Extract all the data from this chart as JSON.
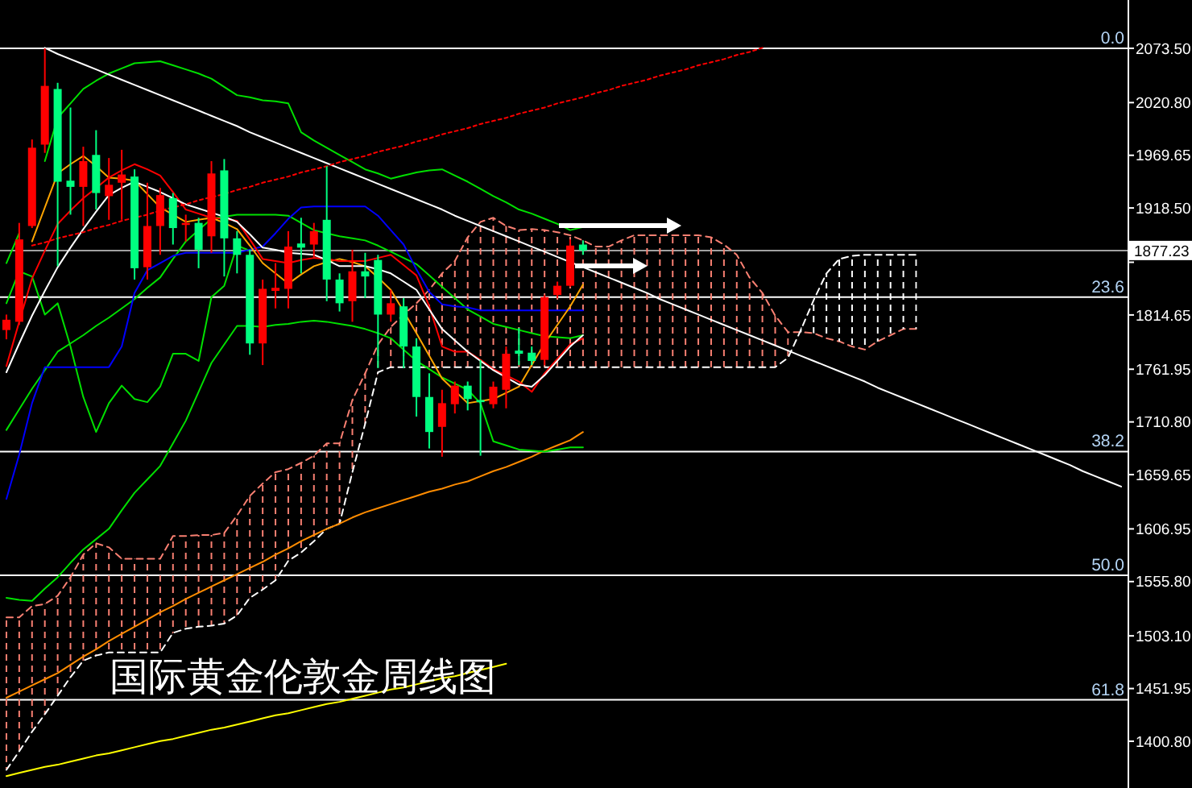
{
  "chart_data": {
    "type": "candlestick",
    "title": "国际黄金伦敦金周线图",
    "categories": [
      null,
      null,
      null,
      null,
      null,
      null,
      null,
      null,
      null,
      null,
      null,
      null,
      null,
      null,
      null,
      null,
      null,
      null,
      null,
      null,
      null,
      null,
      null,
      null,
      null,
      null,
      null,
      null,
      null,
      null,
      null,
      null,
      null,
      null,
      null,
      null,
      null,
      null,
      null,
      null,
      null,
      null,
      null,
      null,
      null,
      null,
      null,
      null,
      null,
      null,
      null,
      null,
      null,
      null,
      null,
      null,
      null,
      null,
      null,
      null,
      null,
      null,
      null,
      null,
      null,
      null,
      null,
      null,
      null,
      null,
      null,
      null,
      null,
      null,
      null,
      null,
      null,
      null,
      null,
      null,
      null,
      null,
      null,
      null,
      null,
      null,
      null,
      null
    ],
    "ohlc": [
      [
        1800,
        1815,
        1791,
        1810
      ],
      [
        1808,
        1904,
        1805,
        1888
      ],
      [
        1901,
        1985,
        1899,
        1977
      ],
      [
        1980,
        2073.5,
        1972,
        2037
      ],
      [
        2034,
        2040,
        1862,
        1944
      ],
      [
        1945,
        2016,
        1912,
        1939
      ],
      [
        1939,
        1978,
        1901,
        1964
      ],
      [
        1970,
        1994,
        1917,
        1933
      ],
      [
        1930,
        1967,
        1907,
        1941
      ],
      [
        1943,
        1975,
        1907,
        1951
      ],
      [
        1949,
        1956,
        1849,
        1860
      ],
      [
        1861,
        1943,
        1849,
        1901
      ],
      [
        1901,
        1938,
        1873,
        1931
      ],
      [
        1928,
        1933,
        1883,
        1899
      ],
      [
        1902,
        1912,
        1886,
        1904
      ],
      [
        1904,
        1909,
        1860,
        1878
      ],
      [
        1891,
        1964,
        1875,
        1952
      ],
      [
        1955,
        1966,
        1852,
        1889
      ],
      [
        1889,
        1896,
        1855,
        1873
      ],
      [
        1873,
        1878,
        1776,
        1787
      ],
      [
        1787,
        1849,
        1766,
        1840
      ],
      [
        1838,
        1865,
        1821,
        1841
      ],
      [
        1840,
        1896,
        1821,
        1881
      ],
      [
        1884,
        1909,
        1855,
        1880
      ],
      [
        1883,
        1904,
        1870,
        1896
      ],
      [
        1907,
        1959,
        1828,
        1849
      ],
      [
        1849,
        1855,
        1818,
        1826
      ],
      [
        1828,
        1878,
        1808,
        1857
      ],
      [
        1857,
        1875,
        1831,
        1852
      ],
      [
        1868,
        1873,
        1763,
        1815
      ],
      [
        1815,
        1839,
        1808,
        1826
      ],
      [
        1823,
        1831,
        1763,
        1784
      ],
      [
        1784,
        1792,
        1716,
        1735
      ],
      [
        1735,
        1758,
        1685,
        1701
      ],
      [
        1706,
        1742,
        1677,
        1729
      ],
      [
        1728,
        1750,
        1719,
        1746
      ],
      [
        1746,
        1750,
        1722,
        1733
      ],
      [
        1732,
        1771,
        1678,
        1730
      ],
      [
        1728,
        1750,
        1724,
        1745
      ],
      [
        1742,
        1784,
        1724,
        1777
      ],
      [
        1780,
        1802,
        1766,
        1777
      ],
      [
        1778,
        1784,
        1766,
        1770
      ],
      [
        1771,
        1834,
        1766,
        1832
      ],
      [
        1834,
        1847,
        1831,
        1843
      ],
      [
        1843,
        1888,
        1842,
        1882
      ],
      [
        1883,
        1887,
        1873,
        1877.23
      ],
      null,
      null,
      null,
      null,
      null,
      null,
      null,
      null,
      null,
      null,
      null,
      null,
      null,
      null,
      null,
      null,
      null,
      null,
      null,
      null,
      null,
      null,
      null,
      null,
      null,
      null,
      null,
      null,
      null,
      null,
      null,
      null,
      null,
      null,
      null,
      null,
      null,
      null,
      null,
      null,
      null,
      null
    ],
    "colors": [
      "#ff0000",
      "#ff0000",
      "#ff0000",
      "#ff0000",
      "#00ff80",
      "#00ff80",
      "#ff0000",
      "#00ff80",
      "#ff0000",
      "#ff0000",
      "#00ff80",
      "#ff0000",
      "#ff0000",
      "#00ff80",
      "#ff0000",
      "#00ff80",
      "#ff0000",
      "#00ff80",
      "#00ff80",
      "#00ff80",
      "#ff0000",
      "#ff0000",
      "#ff0000",
      "#00ff80",
      "#ff0000",
      "#00ff80",
      "#00ff80",
      "#ff0000",
      "#00ff80",
      "#00ff80",
      "#ff0000",
      "#00ff80",
      "#00ff80",
      "#00ff80",
      "#ff0000",
      "#ff0000",
      "#00ff80",
      "#00ff80",
      "#ff0000",
      "#ff0000",
      "#00ff80",
      "#00ff80",
      "#ff0000",
      "#ff0000",
      "#ff0000",
      "#00ff80",
      null,
      null,
      null,
      null,
      null,
      null,
      null,
      null,
      null,
      null,
      null,
      null,
      null,
      null,
      null,
      null,
      null,
      null,
      null,
      null,
      null,
      null,
      null,
      null,
      null,
      null,
      null,
      null,
      null,
      null,
      null,
      null,
      null,
      null,
      null,
      null,
      null,
      null,
      null,
      null,
      null,
      null
    ],
    "series": [
      {
        "type": "line",
        "color": "#fa8072",
        "line_style": "dashed",
        "values": [
          1521,
          1521,
          1532,
          1534,
          1542,
          1560,
          1582,
          1593,
          1589,
          1578,
          1578,
          1578,
          1578,
          1600,
          1600,
          1601,
          1601,
          1603,
          1620,
          1639,
          1651,
          1662,
          1665,
          1671,
          1678,
          1690,
          1690,
          1732,
          1758,
          1786,
          1803,
          1815,
          1826,
          1839,
          1855,
          1867,
          1890,
          1905,
          1909,
          1901,
          1897,
          1898,
          1897,
          1895,
          1892,
          1887,
          1881,
          1881,
          1887,
          1892,
          1892,
          1892,
          1892,
          1892,
          1892,
          1890,
          1883,
          1873,
          1851,
          1836,
          1814,
          1798,
          1798,
          1797,
          1792,
          1789,
          1784,
          1781,
          1789,
          1795,
          1801,
          1801,
          null,
          null,
          null,
          null,
          null,
          null,
          null,
          null,
          null,
          null,
          null,
          null,
          null,
          null,
          null,
          null
        ],
        "upper": [
          1521,
          1521,
          1532,
          1534,
          1542,
          1560,
          1582,
          1593,
          1589,
          1578,
          1578,
          1578,
          1578,
          1600,
          1600,
          1601,
          1601,
          1603,
          1620,
          1639,
          1651,
          1662,
          1665,
          1671,
          1678,
          1690,
          1690,
          1732,
          1758,
          1786,
          1803,
          1815,
          1826,
          1839,
          1855,
          1867,
          1890,
          1905,
          1909,
          1901,
          1897,
          1898,
          1897,
          1895,
          1892,
          1887,
          1881,
          1881,
          1887,
          1892,
          1892,
          1892,
          1892,
          1892,
          1892,
          1890,
          1883,
          1873,
          1851,
          1836,
          1814,
          1798,
          null,
          null,
          null,
          null,
          null,
          null,
          null,
          null,
          null,
          null,
          null,
          null,
          null,
          null,
          null,
          null,
          null,
          null,
          null,
          null,
          null,
          null,
          null,
          null,
          null,
          null
        ],
        "lower": [
          1373,
          1391,
          1410,
          1427,
          1445,
          1463,
          1479,
          1484,
          1487,
          1487,
          1487,
          1487,
          1487,
          1506,
          1510,
          1512,
          1513,
          1515,
          1523,
          1540,
          1548,
          1557,
          1576,
          1584,
          1595,
          1607,
          1612,
          1662,
          1709,
          1759,
          1764,
          1764,
          1764,
          1764,
          1764,
          1764,
          1764,
          1764,
          1764,
          1764,
          1764,
          1764,
          1764,
          1764,
          1764,
          1764,
          1764,
          1764,
          1764,
          1764,
          1764,
          1764,
          1764,
          1764,
          1764,
          1764,
          1764,
          1764,
          1764,
          1764,
          1764,
          1773,
          null,
          null,
          null,
          null,
          null,
          null,
          null,
          null,
          null,
          null,
          null,
          null,
          null,
          null,
          null,
          null,
          null,
          null,
          null,
          null,
          null,
          null,
          null,
          null,
          null,
          null
        ]
      },
      {
        "type": "line",
        "color": "#ffffff",
        "line_style": "dashed",
        "values": [
          1373,
          1391,
          1410,
          1427,
          1445,
          1463,
          1479,
          1484,
          1487,
          1487,
          1487,
          1487,
          1487,
          1506,
          1510,
          1512,
          1513,
          1515,
          1523,
          1540,
          1548,
          1557,
          1576,
          1584,
          1595,
          1607,
          1612,
          1662,
          1709,
          1759,
          1764,
          1764,
          1764,
          1764,
          1764,
          1764,
          1764,
          1764,
          1764,
          1764,
          1764,
          1764,
          1764,
          1764,
          1764,
          1764,
          1764,
          1764,
          1764,
          1764,
          1764,
          1764,
          1764,
          1764,
          1764,
          1764,
          1764,
          1764,
          1764,
          1764,
          1764,
          1773,
          1800,
          1829,
          1855,
          1869,
          1872,
          1873,
          1873,
          1873,
          1873,
          1873,
          null,
          null,
          null,
          null,
          null,
          null,
          null,
          null,
          null,
          null,
          null,
          null,
          null,
          null,
          null,
          null
        ],
        "upper": [
          null,
          null,
          null,
          null,
          null,
          null,
          null,
          null,
          null,
          null,
          null,
          null,
          null,
          null,
          null,
          null,
          null,
          null,
          null,
          null,
          null,
          null,
          null,
          null,
          null,
          null,
          null,
          null,
          null,
          null,
          null,
          null,
          null,
          null,
          null,
          null,
          null,
          null,
          null,
          null,
          null,
          null,
          null,
          null,
          null,
          null,
          null,
          null,
          null,
          null,
          null,
          null,
          null,
          null,
          null,
          null,
          null,
          null,
          null,
          null,
          null,
          null,
          1800,
          1829,
          1855,
          1869,
          1872,
          1873,
          1873,
          1873,
          1873,
          1873,
          null,
          null,
          null,
          null,
          null,
          null,
          null,
          null,
          null,
          null,
          null,
          null,
          null,
          null,
          null,
          null
        ],
        "lower": [
          null,
          null,
          null,
          null,
          null,
          null,
          null,
          null,
          null,
          null,
          null,
          null,
          null,
          null,
          null,
          null,
          null,
          null,
          null,
          null,
          null,
          null,
          null,
          null,
          null,
          null,
          null,
          null,
          null,
          null,
          null,
          null,
          null,
          null,
          null,
          null,
          null,
          null,
          null,
          null,
          null,
          null,
          null,
          null,
          null,
          null,
          null,
          null,
          null,
          null,
          null,
          null,
          null,
          null,
          null,
          null,
          null,
          null,
          null,
          null,
          null,
          null,
          1798,
          1797,
          1792,
          1789,
          1784,
          1781,
          1789,
          1795,
          1801,
          1801,
          null,
          null,
          null,
          null,
          null,
          null,
          null,
          null,
          null,
          null,
          null,
          null,
          null,
          null,
          null,
          null
        ]
      },
      {
        "type": "line",
        "color": "#ff8c00",
        "values": [
          1443,
          1449,
          1455,
          1461,
          1467,
          1475,
          1483,
          1490,
          1498,
          1505,
          1512,
          1519,
          1526,
          1532,
          1539,
          1545,
          1551,
          1557,
          1563,
          1569,
          1575,
          1582,
          1588,
          1595,
          1601,
          1607,
          1612,
          1618,
          1623,
          1627,
          1631,
          1635,
          1639,
          1643,
          1646,
          1650,
          1653,
          1658,
          1663,
          1667,
          1672,
          1677,
          1683,
          1688,
          1693,
          1701,
          null,
          null,
          null,
          null,
          null,
          null,
          null,
          null,
          null,
          null,
          null,
          null,
          null,
          null,
          null,
          null,
          null,
          null,
          null,
          null,
          null,
          null,
          null,
          null,
          null,
          null,
          null,
          null,
          null,
          null,
          null,
          null,
          null,
          null,
          null,
          null,
          null,
          null,
          null,
          null,
          null,
          null
        ]
      },
      {
        "type": "line",
        "color": "#ffff00",
        "values": [
          1367,
          1370,
          1373,
          1376,
          1378,
          1381,
          1384,
          1387,
          1389,
          1392,
          1395,
          1398,
          1401,
          1403,
          1406,
          1409,
          1412,
          1414,
          1417,
          1420,
          1423,
          1426,
          1428,
          1431,
          1434,
          1437,
          1439,
          1442,
          1445,
          1448,
          1451,
          1453,
          1456,
          1459,
          1462,
          1464,
          1467,
          1470,
          1473,
          1476,
          null,
          null,
          null,
          null,
          null,
          null,
          null,
          null,
          null,
          null,
          null,
          null,
          null,
          null,
          null,
          null,
          null,
          null,
          null,
          null,
          null,
          null,
          null,
          null,
          null,
          null,
          null,
          null,
          null,
          null,
          null,
          null,
          null,
          null,
          null,
          null,
          null,
          null,
          null,
          null,
          null,
          null,
          null,
          null,
          null,
          null,
          null,
          null
        ]
      },
      {
        "type": "line",
        "color": "#00e000",
        "values": [
          1865,
          1894,
          null,
          1964,
          2006,
          2020,
          2034,
          2042,
          2049,
          2054,
          2059,
          2060,
          2061,
          2057,
          2053,
          2049,
          2044,
          2036,
          2028,
          2026,
          2023,
          2022,
          2020,
          1992,
          1984,
          1977,
          1970,
          1963,
          1956,
          1952,
          1947,
          1950,
          1953,
          1955,
          1956,
          1950,
          1944,
          1937,
          1930,
          1924,
          1917,
          1913,
          1908,
          1903,
          1897,
          1900,
          null,
          null,
          null,
          null,
          null,
          null,
          null,
          null,
          null,
          null,
          null,
          null,
          null,
          null,
          null,
          null,
          null,
          null,
          null,
          null,
          null,
          null,
          null,
          null,
          null,
          null,
          null,
          null,
          null,
          null,
          null,
          null,
          null,
          null,
          null,
          null,
          null,
          null,
          null,
          null,
          null,
          null
        ]
      },
      {
        "type": "line",
        "color": "#00e000",
        "values": [
          1703,
          1723,
          1743,
          1761,
          1779,
          1787,
          1795,
          1804,
          1812,
          1821,
          1830,
          1841,
          1851,
          1869,
          1886,
          1897,
          1908,
          1910,
          1912,
          1912,
          1912,
          1912,
          1911,
          1904,
          1897,
          1894,
          1891,
          1889,
          1887,
          1882,
          1876,
          1870,
          1864,
          1853,
          1842,
          1831,
          1820,
          1813,
          1806,
          1803,
          1800,
          1797,
          1794,
          1793,
          1792,
          1795,
          null,
          null,
          null,
          null,
          null,
          null,
          null,
          null,
          null,
          null,
          null,
          null,
          null,
          null,
          null,
          null,
          null,
          null,
          null,
          null,
          null,
          null,
          null,
          null,
          null,
          null,
          null,
          null,
          null,
          null,
          null,
          null,
          null,
          null,
          null,
          null,
          null,
          null,
          null,
          null,
          null,
          null
        ]
      },
      {
        "type": "line",
        "color": "#00e000",
        "values": [
          1540,
          1538,
          1537,
          1549,
          1560,
          1574,
          1587,
          1597,
          1607,
          1625,
          1642,
          1655,
          1668,
          1690,
          1712,
          1740,
          1768,
          1786,
          1804,
          1804,
          1803,
          1805,
          1806,
          1808,
          1809,
          1808,
          1806,
          1804,
          1801,
          1797,
          1792,
          1781,
          1770,
          1762,
          1754,
          1748,
          1742,
          1729,
          1692,
          1688,
          1684,
          1683,
          1682,
          1684,
          1686,
          1686,
          null,
          null,
          null,
          null,
          null,
          null,
          null,
          null,
          null,
          null,
          null,
          null,
          null,
          null,
          null,
          null,
          null,
          null,
          null,
          null,
          null,
          null,
          null,
          null,
          null,
          null,
          null,
          null,
          null,
          null,
          null,
          null,
          null,
          null,
          null,
          null,
          null,
          null,
          null,
          null,
          null,
          null
        ]
      },
      {
        "type": "line",
        "color": "#00e000",
        "values": [
          1826,
          1857,
          1852,
          1815,
          1826,
          1784,
          1735,
          1701,
          1729,
          1746,
          1733,
          1730,
          1745,
          1777,
          1777,
          1770,
          1832,
          1843,
          1882,
          1877,
          null,
          null,
          null,
          null,
          null,
          null,
          null,
          null,
          null,
          null,
          null,
          null,
          null,
          null,
          null,
          null,
          null,
          null,
          null,
          null,
          null,
          null,
          null,
          null,
          null,
          null,
          null,
          null,
          null,
          null,
          null,
          null,
          null,
          null,
          null,
          null,
          null,
          null,
          null,
          null,
          null,
          null,
          null,
          null,
          null,
          null,
          null,
          null,
          null,
          null,
          null,
          null,
          null,
          null,
          null,
          null,
          null,
          null,
          null,
          null,
          null,
          null,
          null,
          null,
          null,
          null,
          null,
          null
        ]
      },
      {
        "type": "line",
        "color": "#0000ff",
        "values": [
          1636,
          1679,
          1729,
          1764,
          1764,
          1764,
          1764,
          1764,
          1764,
          1784,
          1836,
          1858,
          1865,
          1872,
          1875,
          1875,
          1875,
          1875,
          1875,
          1878,
          1881,
          1894,
          1908,
          1919,
          1920,
          1920,
          1920,
          1920,
          1920,
          1911,
          1897,
          1883,
          1859,
          1837,
          1825,
          1823,
          1822,
          1819,
          1819,
          1819,
          1819,
          1819,
          1819,
          1819,
          1819,
          1819,
          null,
          null,
          null,
          null,
          null,
          null,
          null,
          null,
          null,
          null,
          null,
          null,
          null,
          null,
          null,
          null,
          null,
          null,
          null,
          null,
          null,
          null,
          null,
          null,
          null,
          null,
          null,
          null,
          null,
          null,
          null,
          null,
          null,
          null,
          null,
          null,
          null,
          null,
          null,
          null,
          null,
          null
        ]
      },
      {
        "type": "line",
        "color": "#ffa500",
        "values": [
          null,
          null,
          1886,
          1919,
          1952,
          1961,
          1969,
          1959,
          1948,
          1947,
          1945,
          1932,
          1919,
          1912,
          1905,
          1907,
          1909,
          1904,
          1898,
          1882,
          1865,
          1855,
          1845,
          1854,
          1862,
          1866,
          1869,
          1866,
          1862,
          1851,
          1839,
          1818,
          1797,
          1775,
          1753,
          1741,
          1729,
          1731,
          1733,
          1739,
          1745,
          1766,
          1787,
          1805,
          1823,
          1844,
          null,
          null,
          null,
          null,
          null,
          null,
          null,
          null,
          null,
          null,
          null,
          null,
          null,
          null,
          null,
          null,
          null,
          null,
          null,
          null,
          null,
          null,
          null,
          null,
          null,
          null,
          null,
          null,
          null,
          null,
          null,
          null,
          null,
          null,
          null,
          null,
          null,
          null,
          null,
          null,
          null,
          null
        ]
      },
      {
        "type": "line",
        "color": "#ff0000",
        "values": [
          1765,
          1808,
          1850,
          1877,
          1903,
          1916,
          1928,
          1938,
          1948,
          1955,
          1961,
          1956,
          1950,
          1934,
          1917,
          1913,
          1909,
          1908,
          1906,
          1888,
          1869,
          1867,
          1865,
          1868,
          1870,
          1869,
          1867,
          1867,
          1867,
          1870,
          1873,
          1863,
          1853,
          1823,
          1784,
          1779,
          1779,
          1771,
          1762,
          1756,
          1750,
          1740,
          1758,
          1772,
          1786,
          1792,
          null,
          null,
          null,
          null,
          null,
          null,
          null,
          null,
          null,
          null,
          null,
          null,
          null,
          null,
          null,
          null,
          null,
          null,
          null,
          null,
          null,
          null,
          null,
          null,
          null,
          null,
          null,
          null,
          null,
          null,
          null,
          null,
          null,
          null,
          null,
          null,
          null,
          null,
          null,
          null,
          null,
          null
        ]
      },
      {
        "type": "line",
        "color": "#ffffff",
        "values": [
          1759,
          1787,
          1814,
          1838,
          1861,
          1880,
          1898,
          1915,
          1931,
          1938,
          1944,
          1939,
          1934,
          1928,
          1922,
          1918,
          1914,
          1910,
          1905,
          1893,
          1880,
          1878,
          1875,
          1874,
          1873,
          1868,
          1862,
          1862,
          1862,
          1859,
          1855,
          1847,
          1839,
          1820,
          1801,
          1790,
          1779,
          1770,
          1761,
          1754,
          1747,
          1745,
          1756,
          1770,
          1784,
          1795,
          null,
          null,
          null,
          null,
          null,
          null,
          null,
          null,
          null,
          null,
          null,
          null,
          null,
          null,
          null,
          null,
          null,
          null,
          null,
          null,
          null,
          null,
          null,
          null,
          null,
          null,
          null,
          null,
          null,
          null,
          null,
          null,
          null,
          null,
          null,
          null,
          null,
          null,
          null,
          null,
          null,
          null
        ]
      },
      {
        "type": "line",
        "color": "#ffffff",
        "values": [
          null,
          null,
          null,
          2074,
          2068,
          2063,
          2058,
          2053,
          2048,
          2043,
          2038,
          2033,
          2028,
          2023,
          2018,
          2013,
          2008,
          2003,
          1998,
          1992,
          1987,
          1982,
          1977,
          1972,
          1967,
          1962,
          1957,
          1952,
          1947,
          1942,
          1937,
          1932,
          1927,
          1922,
          1917,
          1911,
          1906,
          1901,
          1896,
          1891,
          1886,
          1881,
          1876,
          1871,
          1866,
          1861,
          1856,
          1851,
          1846,
          1841,
          1836,
          1830,
          1825,
          1820,
          1815,
          1810,
          1805,
          1800,
          1795,
          1790,
          1785,
          1780,
          1775,
          1770,
          1765,
          1760,
          1755,
          1750,
          1744,
          1739,
          1734,
          1729,
          1724,
          1719,
          1714,
          1709,
          1704,
          1699,
          1694,
          1689,
          1684,
          1679,
          1674,
          1669,
          1663,
          1658,
          1653,
          1648
        ]
      },
      {
        "type": "line",
        "color": "#ff0000",
        "line_style": "dotted",
        "values": [
          null,
          null,
          1882,
          1885,
          1889,
          1892,
          1895,
          1899,
          1902,
          1906,
          1909,
          1912,
          1916,
          1919,
          1922,
          1926,
          1929,
          1932,
          1936,
          1939,
          1943,
          1946,
          1949,
          1953,
          1956,
          1959,
          1963,
          1966,
          1969,
          1973,
          1976,
          1979,
          1983,
          1986,
          1990,
          1993,
          1996,
          2000,
          2003,
          2006,
          2010,
          2013,
          2016,
          2020,
          2023,
          2026,
          2030,
          2033,
          2037,
          2040,
          2043,
          2047,
          2050,
          2053,
          2057,
          2060,
          2063,
          2067,
          2070,
          2074,
          null,
          null,
          null,
          null,
          null,
          null,
          null,
          null,
          null,
          null,
          null,
          null,
          null,
          null,
          null,
          null,
          null,
          null,
          null,
          null,
          null,
          null,
          null,
          null,
          null,
          null,
          null,
          null
        ]
      }
    ],
    "ylim": [
      1355.4,
      2120.4
    ],
    "yticks": [
      {
        "value": 2073.5,
        "label": "2073.50"
      },
      {
        "value": 2020.8,
        "label": "2020.80"
      },
      {
        "value": 1969.65,
        "label": "1969.65"
      },
      {
        "value": 1918.5,
        "label": "1918.50"
      },
      {
        "value": 1865.8,
        "label": null
      },
      {
        "value": 1814.65,
        "label": "1814.65"
      },
      {
        "value": 1761.95,
        "label": "1761.95"
      },
      {
        "value": 1710.8,
        "label": "1710.80"
      },
      {
        "value": 1659.65,
        "label": "1659.65"
      },
      {
        "value": 1606.95,
        "label": "1606.95"
      },
      {
        "value": 1555.8,
        "label": "1555.80"
      },
      {
        "value": 1503.1,
        "label": "1503.10"
      },
      {
        "value": 1451.95,
        "label": "1451.95"
      },
      {
        "value": 1400.8,
        "label": "1400.80"
      }
    ],
    "tick_labels": "y",
    "ref_lines": [
      {
        "axis": "y",
        "value": 2073.5,
        "color": "#ffffff"
      },
      {
        "axis": "y",
        "value": 1832,
        "color": "#ffffff"
      },
      {
        "axis": "y",
        "value": 1682,
        "color": "#ffffff"
      },
      {
        "axis": "y",
        "value": 1562,
        "color": "#ffffff"
      },
      {
        "axis": "y",
        "value": 1441,
        "color": "#ffffff"
      },
      {
        "axis": "y",
        "value": 1877.23,
        "label": "1877.23",
        "color": "#a0a0a0"
      }
    ],
    "annotations": [
      {
        "text": "0.0",
        "y": 2073.5
      },
      {
        "text": "23.6",
        "y": 1832
      },
      {
        "text": "38.2",
        "y": 1682
      },
      {
        "text": "50.0",
        "y": 1562
      },
      {
        "text": "61.8",
        "y": 1441
      }
    ]
  }
}
